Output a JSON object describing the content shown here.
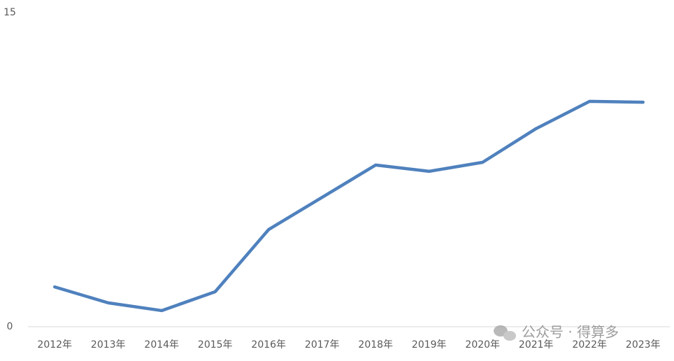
{
  "chart_data": {
    "type": "line",
    "categories": [
      "2012年",
      "2013年",
      "2014年",
      "2015年",
      "2016年",
      "2017年",
      "2018年",
      "2019年",
      "2020年",
      "2021年",
      "2022年",
      "2023年"
    ],
    "series": [
      {
        "color": "#4f81bd",
        "values": [
          1.9,
          1.14,
          0.77,
          1.67,
          4.64,
          6.18,
          7.72,
          7.42,
          7.85,
          9.46,
          10.76,
          10.72
        ]
      }
    ],
    "ylim": [
      0,
      15
    ],
    "yticks": [
      0,
      15
    ],
    "grid": false,
    "watermark": "公众号 · 得算多"
  }
}
